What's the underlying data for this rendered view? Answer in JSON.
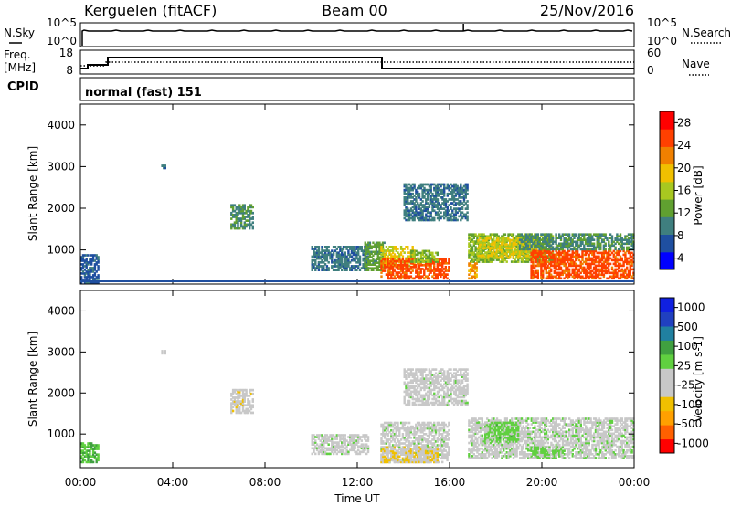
{
  "header": {
    "radar": "Kerguelen (fitACF)",
    "beam": "Beam 00",
    "date": "25/Nov/2016"
  },
  "strips": {
    "nsky_label": "N.Sky",
    "nsky_ticks": [
      "10^5",
      "10^0"
    ],
    "nsearch_label": "N.Search",
    "nsearch_ticks": [
      "10^5",
      "10^0"
    ],
    "freq_label": "Freq.",
    "freq_unit": "[MHz]",
    "freq_ticks": [
      "18",
      "8"
    ],
    "nave_label": "Nave",
    "nave_ticks": [
      "60",
      "0"
    ],
    "cpid_label": "CPID",
    "cpid_value": "normal (fast) 151"
  },
  "colors": {
    "power_scale": [
      "#0000ff",
      "#1f4fa0",
      "#3f7f7f",
      "#60a030",
      "#a8c820",
      "#f0c000",
      "#f08000",
      "#ff4000",
      "#ff0000"
    ],
    "velocity_scale": [
      "#ff0000",
      "#ff6000",
      "#ffa000",
      "#f0c000",
      "#c8c8c8",
      "#c8c8c8",
      "#60d040",
      "#40a040",
      "#2080a0",
      "#2040c0",
      "#1020e0"
    ]
  },
  "chart_data": [
    {
      "type": "heatmap",
      "name": "power",
      "ylabel": "Slant Range [km]",
      "ylim": [
        180,
        4500
      ],
      "yticks": [
        "4000",
        "3000",
        "2000",
        "1000"
      ],
      "xticks": [
        "00:00",
        "04:00",
        "08:00",
        "12:00",
        "16:00",
        "20:00",
        "00:00"
      ],
      "colorbar_label": "Power [dB]",
      "colorbar_ticks": [
        "28",
        "24",
        "20",
        "16",
        "12",
        "8",
        "4"
      ],
      "crange": [
        0,
        32
      ],
      "regions": [
        {
          "t": [
            0.0,
            0.8
          ],
          "r": [
            200,
            900
          ],
          "v": 6
        },
        {
          "t": [
            3.5,
            3.7
          ],
          "r": [
            2950,
            3050
          ],
          "v": 8
        },
        {
          "t": [
            6.5,
            7.5
          ],
          "r": [
            1500,
            2100
          ],
          "v": 10
        },
        {
          "t": [
            10.0,
            12.5
          ],
          "r": [
            500,
            1100
          ],
          "v": 8
        },
        {
          "t": [
            12.3,
            13.2
          ],
          "r": [
            500,
            1200
          ],
          "v": 12
        },
        {
          "t": [
            13.0,
            14.5
          ],
          "r": [
            600,
            1100
          ],
          "v": 18
        },
        {
          "t": [
            13.0,
            16.0
          ],
          "r": [
            300,
            800
          ],
          "v": 26
        },
        {
          "t": [
            14.0,
            16.8
          ],
          "r": [
            1700,
            2600
          ],
          "v": 8
        },
        {
          "t": [
            14.3,
            15.5
          ],
          "r": [
            700,
            1000
          ],
          "v": 14
        },
        {
          "t": [
            16.8,
            20.5
          ],
          "r": [
            700,
            1400
          ],
          "v": 14
        },
        {
          "t": [
            17.2,
            19.8
          ],
          "r": [
            800,
            1300
          ],
          "v": 18
        },
        {
          "t": [
            19.5,
            24.0
          ],
          "r": [
            300,
            1000
          ],
          "v": 26
        },
        {
          "t": [
            19.0,
            24.0
          ],
          "r": [
            1000,
            1400
          ],
          "v": 10
        },
        {
          "t": [
            16.8,
            17.2
          ],
          "r": [
            300,
            700
          ],
          "v": 22
        }
      ]
    },
    {
      "type": "heatmap",
      "name": "velocity",
      "ylabel": "Slant Range [km]",
      "ylim": [
        180,
        4500
      ],
      "yticks": [
        "4000",
        "3000",
        "2000",
        "1000"
      ],
      "xticks": [
        "00:00",
        "04:00",
        "08:00",
        "12:00",
        "16:00",
        "20:00",
        "00:00"
      ],
      "xlabel": "Time UT",
      "colorbar_label": "Velocity [m s-1]",
      "colorbar_ticks": [
        "1000",
        "500",
        "100",
        "25",
        "-25",
        "-100",
        "-500",
        "-1000"
      ],
      "crange": [
        -1200,
        1200
      ],
      "regions": [
        {
          "t": [
            0.0,
            0.8
          ],
          "r": [
            300,
            800
          ],
          "v": 300
        },
        {
          "t": [
            3.5,
            3.7
          ],
          "r": [
            2950,
            3050
          ],
          "v": -100
        },
        {
          "t": [
            6.5,
            7.5
          ],
          "r": [
            1500,
            2100
          ],
          "v": -200
        },
        {
          "t": [
            10.0,
            12.5
          ],
          "r": [
            500,
            1000
          ],
          "v": 0
        },
        {
          "t": [
            13.0,
            16.0
          ],
          "r": [
            300,
            1300
          ],
          "v": 0
        },
        {
          "t": [
            13.0,
            15.5
          ],
          "r": [
            300,
            700
          ],
          "v": -300
        },
        {
          "t": [
            14.0,
            16.8
          ],
          "r": [
            1700,
            2600
          ],
          "v": -20
        },
        {
          "t": [
            16.8,
            24.0
          ],
          "r": [
            400,
            1400
          ],
          "v": 10
        },
        {
          "t": [
            17.5,
            19.0
          ],
          "r": [
            800,
            1300
          ],
          "v": 200
        },
        {
          "t": [
            19.5,
            21.0
          ],
          "r": [
            400,
            700
          ],
          "v": 150
        }
      ]
    }
  ]
}
